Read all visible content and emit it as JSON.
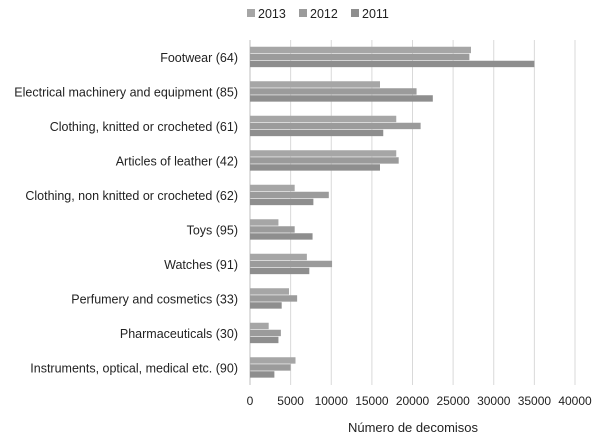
{
  "chart_data": {
    "type": "bar",
    "orientation": "horizontal",
    "categories": [
      "Footwear (64)",
      "Electrical machinery and equipment (85)",
      "Clothing, knitted or crocheted (61)",
      "Articles of leather (42)",
      "Clothing, non knitted or crocheted (62)",
      "Toys (95)",
      "Watches (91)",
      "Perfumery and cosmetics (33)",
      "Pharmaceuticals (30)",
      "Instruments, optical, medical etc. (90)"
    ],
    "series": [
      {
        "name": "2013",
        "color": "#a6a6a6",
        "values": [
          27200,
          16000,
          18000,
          18000,
          5500,
          3500,
          7000,
          4800,
          2300,
          5600
        ]
      },
      {
        "name": "2012",
        "color": "#9b9b9b",
        "values": [
          27000,
          20500,
          21000,
          18300,
          9700,
          5500,
          10100,
          5800,
          3800,
          5000
        ]
      },
      {
        "name": "2011",
        "color": "#8e8e8e",
        "values": [
          35000,
          22500,
          16400,
          16000,
          7800,
          7700,
          7300,
          3900,
          3500,
          3000
        ]
      }
    ],
    "xlabel": "Número de decomisos",
    "ylabel": "",
    "xlim": [
      0,
      40000
    ],
    "xticks": [
      "0",
      "5000",
      "10000",
      "15000",
      "20000",
      "25000",
      "30000",
      "35000",
      "40000"
    ],
    "legend_position": "top",
    "grid": "vertical"
  }
}
